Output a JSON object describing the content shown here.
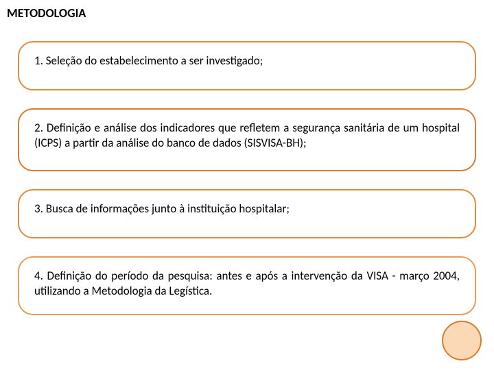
{
  "slide": {
    "title": "METODOLOGIA",
    "title_fontsize": 18,
    "title_color": "#000000",
    "background_color": "#ffffff",
    "box_border_radius": 22,
    "box_border_width": 2,
    "box_fontsize": 17,
    "box_text_color": "#000000",
    "boxes": [
      {
        "text": "1. Seleção do estabelecimento a ser investigado;",
        "border_color": "#e38b3d",
        "min_height": 72
      },
      {
        "text": "2. Definição e análise dos indicadores que refletem a segurança sanitária de um hospital (ICPS) a partir da análise do banco de dados (SISVISA-BH);",
        "border_color": "#d97a2e",
        "min_height": 92
      },
      {
        "text": "3. Busca de informações junto à instituição hospitalar;",
        "border_color": "#e38b3d",
        "min_height": 72
      },
      {
        "text": "4. Definição do período da pesquisa: antes e após a intervenção da VISA - março 2004, utilizando a Metodologia da Legística.",
        "border_color": "#e89c5c",
        "min_height": 86
      }
    ],
    "decoration": {
      "circle_fill": "#fbd9b6",
      "circle_border": "#d97a2e",
      "circle_size": 58
    }
  }
}
